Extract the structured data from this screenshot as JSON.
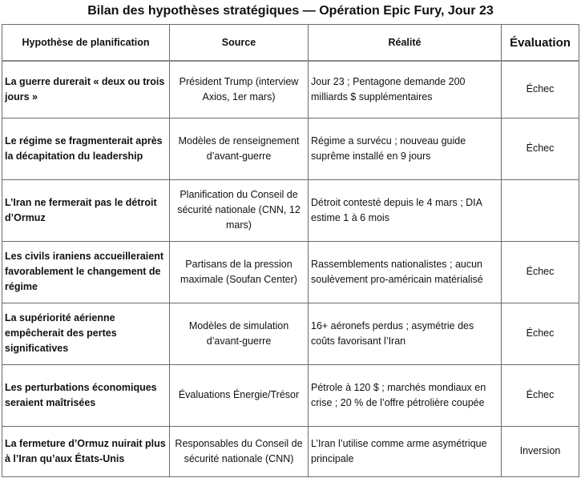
{
  "title": "Bilan des hypothèses stratégiques — Opération Epic Fury, Jour 23",
  "headers": [
    "Hypothèse de planification",
    "Source",
    "Réalité",
    "Évaluation"
  ],
  "rows": [
    {
      "hypothesis": "La guerre durerait « deux ou trois jours »",
      "source": "Président Trump (interview Axios, 1er mars)",
      "reality": "Jour 23 ; Pentagone demande 200 milliards $ supplémentaires",
      "evaluation": "Échec"
    },
    {
      "hypothesis": "Le régime se fragmenterait après la décapitation du leadership",
      "source": "Modèles de renseignement d’avant-guerre",
      "reality": "Régime a survécu ; nouveau guide suprême installé en 9 jours",
      "evaluation": "Échec"
    },
    {
      "hypothesis": "L’Iran ne fermerait pas le détroit d’Ormuz",
      "source": "Planification du Conseil de sécurité nationale (CNN, 12 mars)",
      "reality": "Détroit contesté depuis le 4 mars ; DIA estime 1 à 6 mois",
      "evaluation": ""
    },
    {
      "hypothesis": "Les civils iraniens accueilleraient favorablement le changement de régime",
      "source": "Partisans de la pression maximale (Soufan Center)",
      "reality": "Rassemblements nationalistes ; aucun soulèvement pro-américain matérialisé",
      "evaluation": "Échec"
    },
    {
      "hypothesis": "La supériorité aérienne empêcherait des pertes significatives",
      "source": "Modèles de simulation d’avant-guerre",
      "reality": "16+ aéronefs perdus ; asymétrie des coûts favorisant l’Iran",
      "evaluation": "Échec"
    },
    {
      "hypothesis": "Les perturbations économiques seraient maîtrisées",
      "source": "Évaluations Énergie/Trésor",
      "reality": "Pétrole à 120 $ ; marchés mondiaux en crise ; 20 % de l’offre pétrolière coupée",
      "evaluation": "Échec"
    },
    {
      "hypothesis": "La fermeture d’Ormuz nuirait plus à l’Iran qu’aux États-Unis",
      "source": "Responsables du Conseil de sécurité nationale (CNN)",
      "reality": "L’Iran l’utilise comme arme asymétrique principale",
      "evaluation": "Inversion"
    }
  ]
}
